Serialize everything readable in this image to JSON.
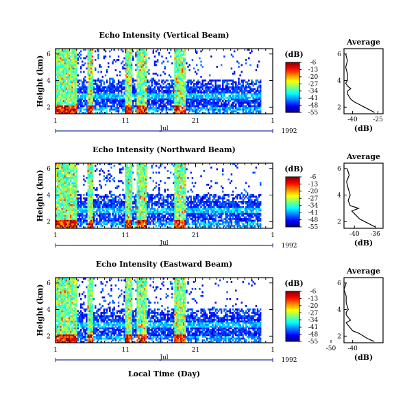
{
  "figure": {
    "xlabel": "Local Time (Day)",
    "month_label": "Jul",
    "year_label": "1992",
    "x_tick_labels": [
      "1",
      "11",
      "21",
      "1"
    ],
    "colorbar_unit": "(dB)",
    "colorbar_ticks": [
      "-6",
      "-13",
      "-20",
      "-27",
      "-34",
      "-41",
      "-48",
      "-55"
    ],
    "average_title": "Average",
    "average_xlabel": "(dB)"
  },
  "chart_data": [
    {
      "type": "heatmap",
      "title": "Echo Intensity (Vertical Beam)",
      "ylabel": "Height (km)",
      "xlabel": "Local Time (Day)",
      "x_range": [
        "1992-07-01",
        "1992-08-01"
      ],
      "y_ticks": [
        "2",
        "4",
        "6"
      ],
      "ylim": [
        1.5,
        6.4
      ],
      "colorbar": {
        "unit": "(dB)",
        "ticks": [
          -6,
          -13,
          -20,
          -27,
          -34,
          -41,
          -48,
          -55
        ],
        "range": [
          -55,
          -6
        ]
      },
      "intense_periods_day": [
        [
          1,
          4
        ],
        [
          5.5,
          6.3
        ],
        [
          11,
          12
        ],
        [
          12.5,
          14
        ],
        [
          18,
          19.5
        ]
      ],
      "average_profile": {
        "title": "Average",
        "xlabel": "(dB)",
        "x_ticks": [
          "-40",
          "-25"
        ],
        "xlim": [
          -45,
          -22
        ],
        "height_km": [
          1.6,
          1.8,
          2.0,
          2.2,
          2.4,
          2.6,
          2.8,
          3.0,
          3.2,
          3.4,
          3.6,
          3.8,
          4.0,
          4.5,
          5.0,
          5.5,
          6.0
        ],
        "db": [
          -27,
          -30,
          -33,
          -36,
          -39,
          -41,
          -42,
          -43,
          -43,
          -41,
          -43,
          -44,
          -43,
          -43,
          -44,
          -43,
          -44
        ]
      }
    },
    {
      "type": "heatmap",
      "title": "Echo Intensity (Northward Beam)",
      "ylabel": "Height (km)",
      "xlabel": "Local Time (Day)",
      "x_range": [
        "1992-07-01",
        "1992-08-01"
      ],
      "y_ticks": [
        "2",
        "4",
        "6"
      ],
      "ylim": [
        1.5,
        6.4
      ],
      "colorbar": {
        "unit": "(dB)",
        "ticks": [
          -6,
          -13,
          -20,
          -27,
          -34,
          -41,
          -48,
          -55
        ],
        "range": [
          -55,
          -6
        ]
      },
      "intense_periods_day": [
        [
          1,
          4
        ],
        [
          5.5,
          6.3
        ],
        [
          11,
          12
        ],
        [
          12.5,
          14
        ],
        [
          18,
          19.5
        ]
      ],
      "average_profile": {
        "title": "Average",
        "xlabel": "(dB)",
        "x_ticks": [
          "-40",
          "-36"
        ],
        "xlim": [
          -42,
          -34.5
        ],
        "height_km": [
          1.6,
          1.8,
          2.0,
          2.2,
          2.4,
          2.6,
          2.8,
          3.0,
          3.2,
          3.4,
          3.6,
          3.8,
          4.0,
          4.5,
          5.0,
          5.5,
          6.0
        ],
        "db": [
          -36,
          -37,
          -38,
          -39,
          -39.5,
          -40,
          -40.5,
          -39.2,
          -40.8,
          -41,
          -41.2,
          -41,
          -40.8,
          -41.2,
          -41.5,
          -41,
          -41.4
        ]
      }
    },
    {
      "type": "heatmap",
      "title": "Echo Intensity (Eastward Beam)",
      "ylabel": "Height (km)",
      "xlabel": "Local Time (Day)",
      "x_range": [
        "1992-07-01",
        "1992-08-01"
      ],
      "y_ticks": [
        "2",
        "4",
        "6"
      ],
      "ylim": [
        1.5,
        6.4
      ],
      "colorbar": {
        "unit": "(dB)",
        "ticks": [
          -6,
          -13,
          -20,
          -27,
          -34,
          -41,
          -48,
          -55
        ],
        "range": [
          -55,
          -6
        ]
      },
      "intense_periods_day": [
        [
          1,
          4
        ],
        [
          5.5,
          6.3
        ],
        [
          11,
          12
        ],
        [
          12.5,
          14
        ],
        [
          18,
          19.5
        ]
      ],
      "average_profile": {
        "title": "Average",
        "xlabel": "(dB)",
        "x_ticks": [
          "-40",
          "-50"
        ],
        "xlim": [
          -44,
          -26
        ],
        "height_km": [
          1.6,
          1.8,
          2.0,
          2.2,
          2.4,
          2.6,
          2.8,
          3.0,
          3.2,
          3.4,
          3.6,
          3.8,
          4.0,
          4.5,
          5.0,
          5.5,
          6.0
        ],
        "db": [
          -30,
          -33,
          -35,
          -37,
          -40,
          -41,
          -42,
          -43,
          -41,
          -42,
          -43,
          -43,
          -42,
          -43,
          -43,
          -44,
          -43
        ]
      }
    }
  ]
}
